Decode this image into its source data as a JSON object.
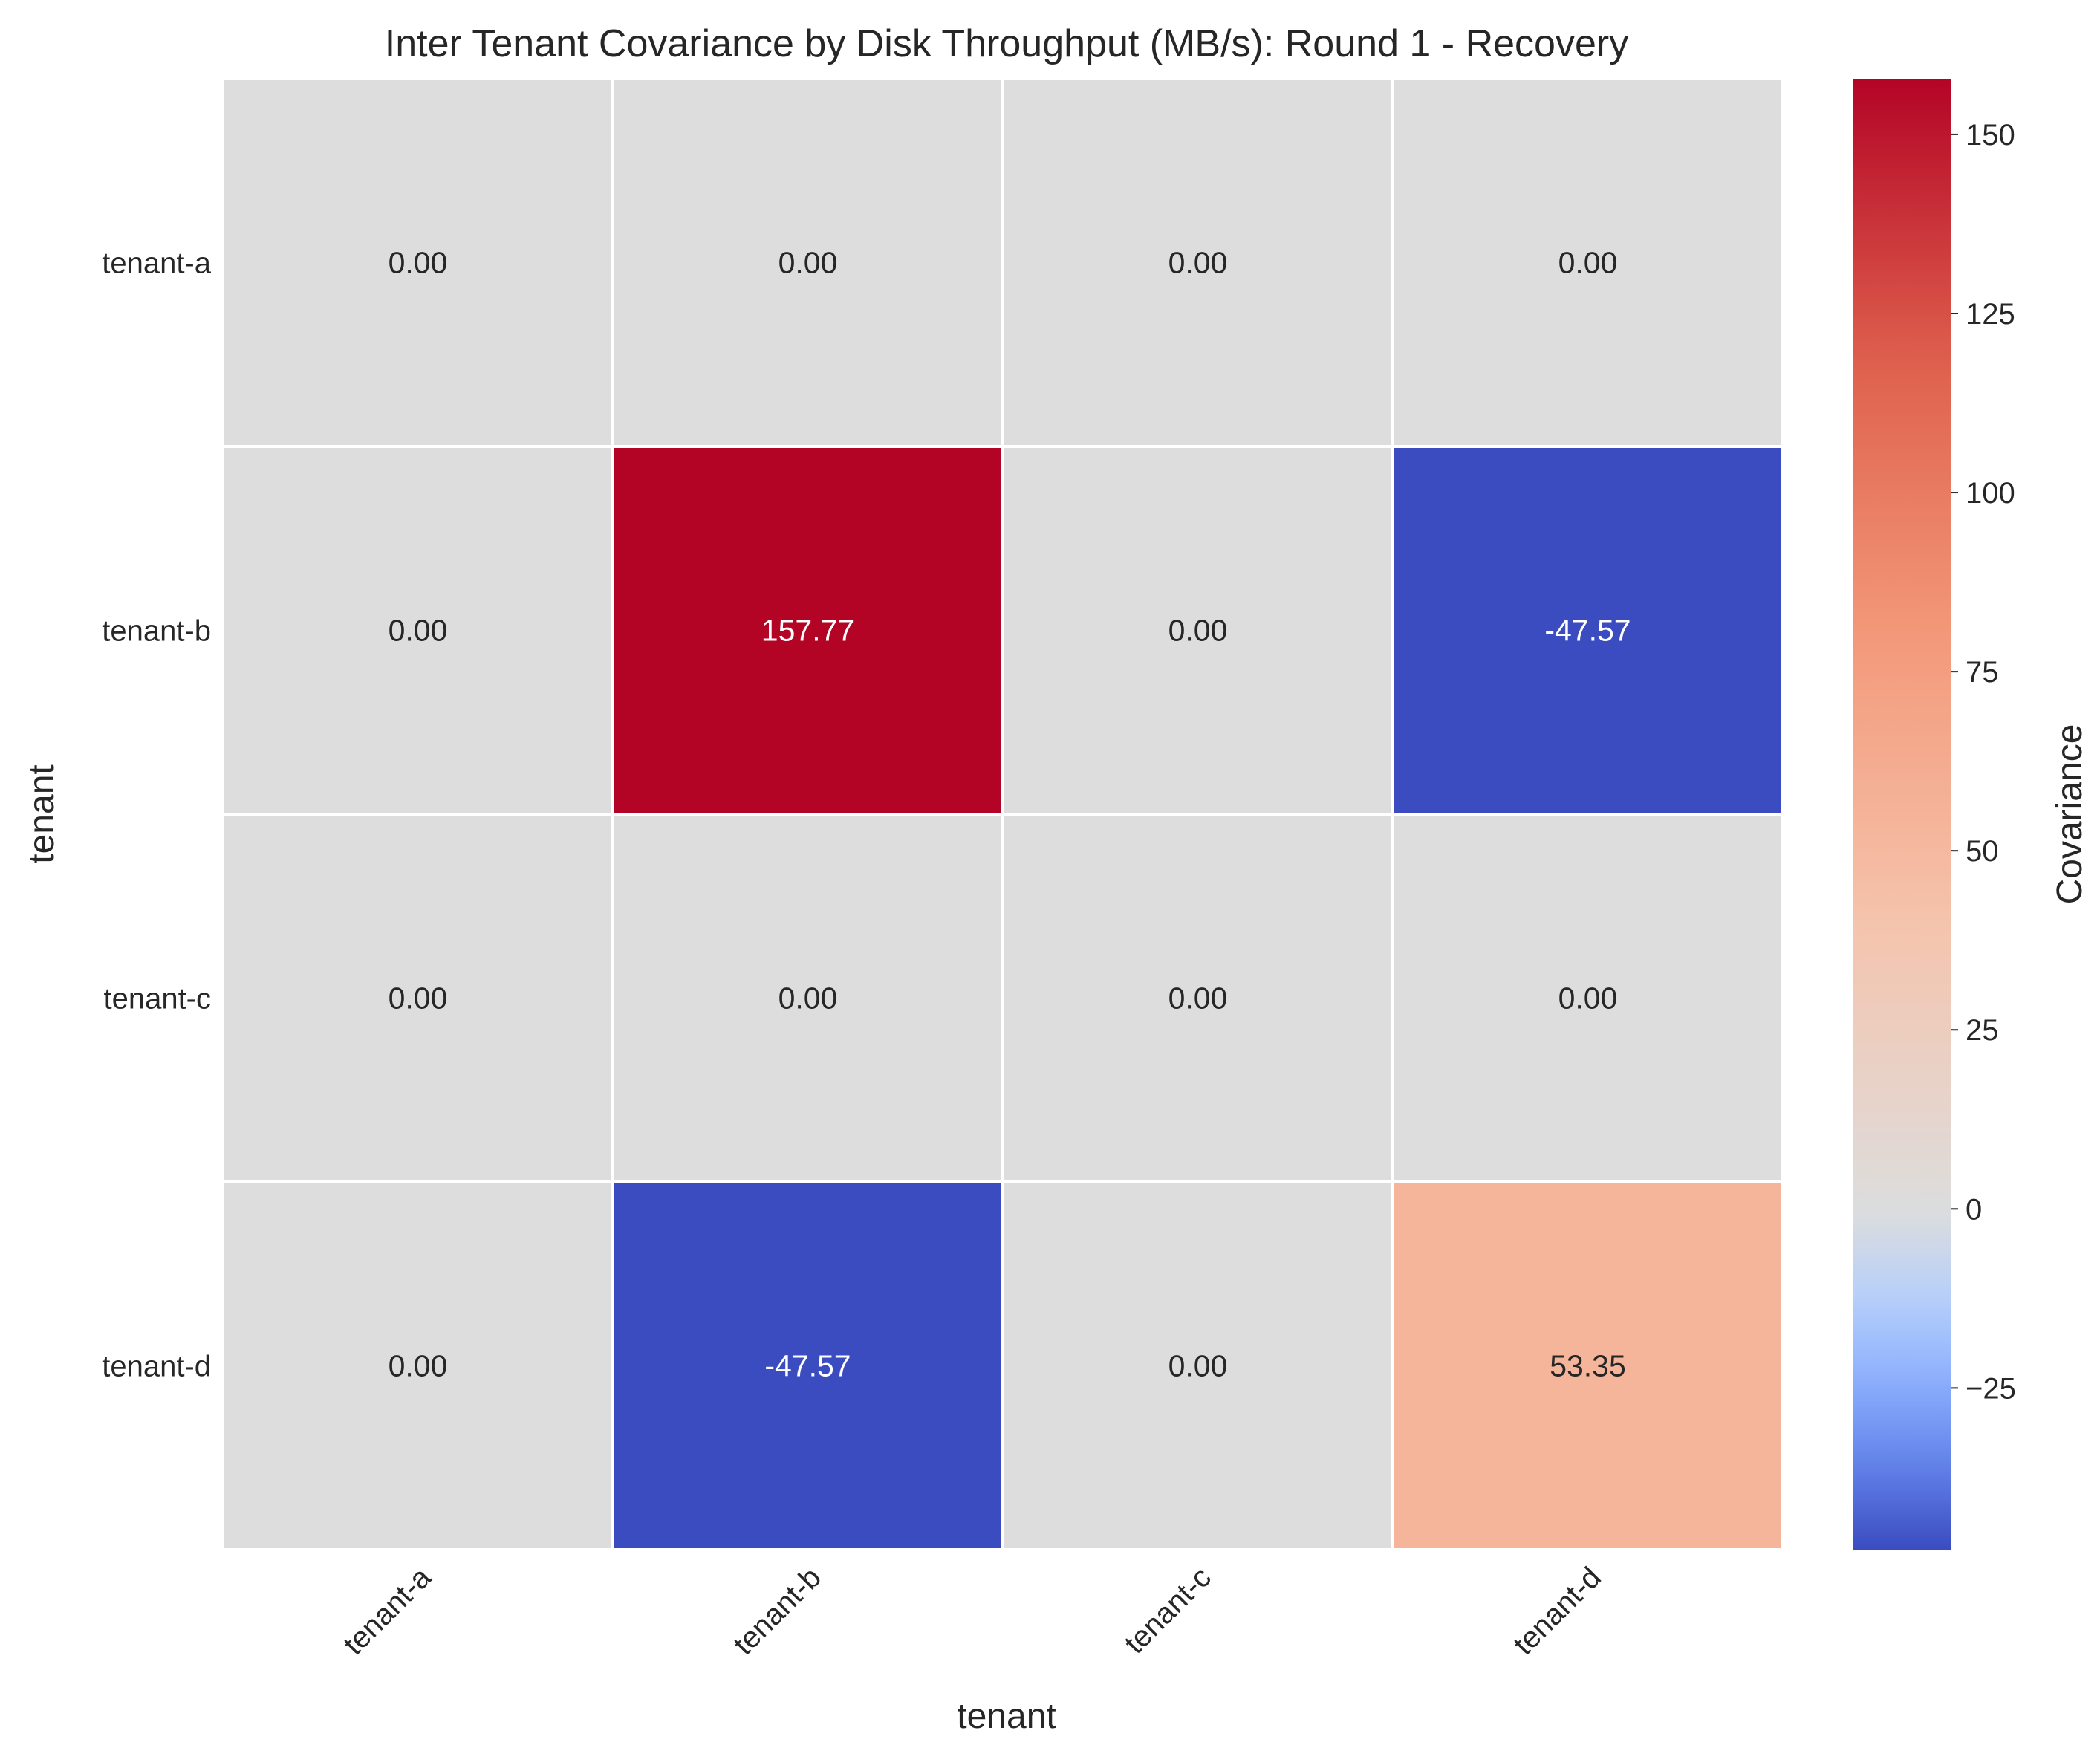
{
  "chart_data": {
    "type": "heatmap",
    "title": "Inter Tenant Covariance by Disk Throughput (MB/s): Round 1 - Recovery",
    "xlabel": "tenant",
    "ylabel": "tenant",
    "x_categories": [
      "tenant-a",
      "tenant-b",
      "tenant-c",
      "tenant-d"
    ],
    "y_categories": [
      "tenant-a",
      "tenant-b",
      "tenant-c",
      "tenant-d"
    ],
    "values": [
      [
        0.0,
        0.0,
        0.0,
        0.0
      ],
      [
        0.0,
        157.77,
        0.0,
        -47.57
      ],
      [
        0.0,
        0.0,
        0.0,
        0.0
      ],
      [
        0.0,
        -47.57,
        0.0,
        53.35
      ]
    ],
    "value_format": "0.00",
    "colormap": "coolwarm",
    "colorbar": {
      "label": "Covariance",
      "range": [
        -47.57,
        157.77
      ],
      "center": 0,
      "ticks": [
        -25,
        0,
        25,
        50,
        75,
        100,
        125,
        150
      ],
      "tick_labels": [
        "−25",
        "0",
        "25",
        "50",
        "75",
        "100",
        "125",
        "150"
      ]
    },
    "grid": false
  }
}
